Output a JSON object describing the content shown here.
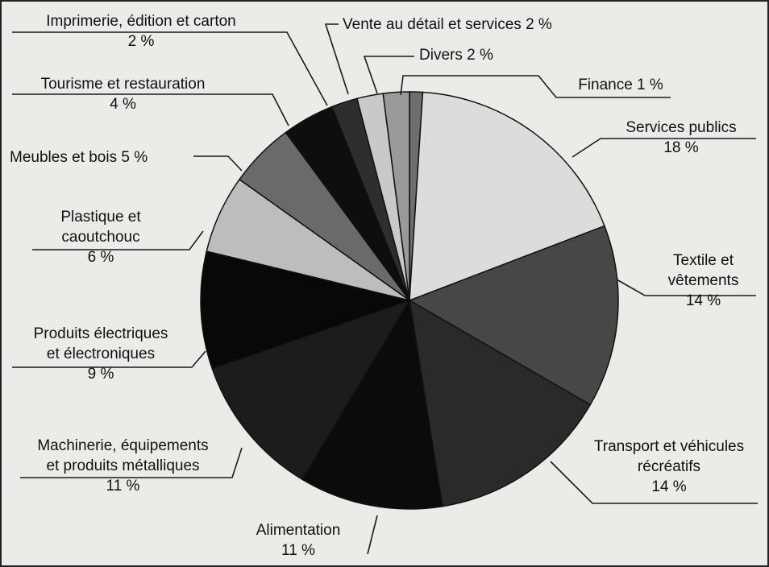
{
  "chart_data": {
    "type": "pie",
    "title": "",
    "slices": [
      {
        "id": "finance",
        "lines": [
          "Finance 1 %"
        ],
        "value": 1,
        "color": "#6e6e6e"
      },
      {
        "id": "services-publics",
        "lines": [
          "Services publics",
          "18 %"
        ],
        "value": 18,
        "color": "#dcdcdc"
      },
      {
        "id": "textile",
        "lines": [
          "Textile et",
          "vêtements",
          "14 %"
        ],
        "value": 14,
        "color": "#474747"
      },
      {
        "id": "transport",
        "lines": [
          "Transport et véhicules",
          "récréatifs",
          "14 %"
        ],
        "value": 14,
        "color": "#2a2a2a"
      },
      {
        "id": "alimentation",
        "lines": [
          "Alimentation",
          "11 %"
        ],
        "value": 11,
        "color": "#0b0b0b"
      },
      {
        "id": "machinerie",
        "lines": [
          "Machinerie, équipements",
          "et produits métalliques",
          "11 %"
        ],
        "value": 11,
        "color": "#1c1c1c"
      },
      {
        "id": "electriques",
        "lines": [
          "Produits électriques",
          "et électroniques",
          "9 %"
        ],
        "value": 9,
        "color": "#080808"
      },
      {
        "id": "plastique",
        "lines": [
          "Plastique et",
          "caoutchouc",
          "6 %"
        ],
        "value": 6,
        "color": "#bdbdbd"
      },
      {
        "id": "meubles",
        "lines": [
          "Meubles et bois 5 %"
        ],
        "value": 5,
        "color": "#6a6a6a"
      },
      {
        "id": "tourisme",
        "lines": [
          "Tourisme et restauration",
          "4 %"
        ],
        "value": 4,
        "color": "#0e0e0e"
      },
      {
        "id": "imprimerie",
        "lines": [
          "Imprimerie, édition et carton",
          "2 %"
        ],
        "value": 2,
        "color": "#2e2e2e"
      },
      {
        "id": "vente",
        "lines": [
          "Vente au détail et services 2 %"
        ],
        "value": 2,
        "color": "#c9c9c9"
      },
      {
        "id": "divers",
        "lines": [
          "Divers 2 %"
        ],
        "value": 2,
        "color": "#9a9a9a"
      }
    ]
  }
}
